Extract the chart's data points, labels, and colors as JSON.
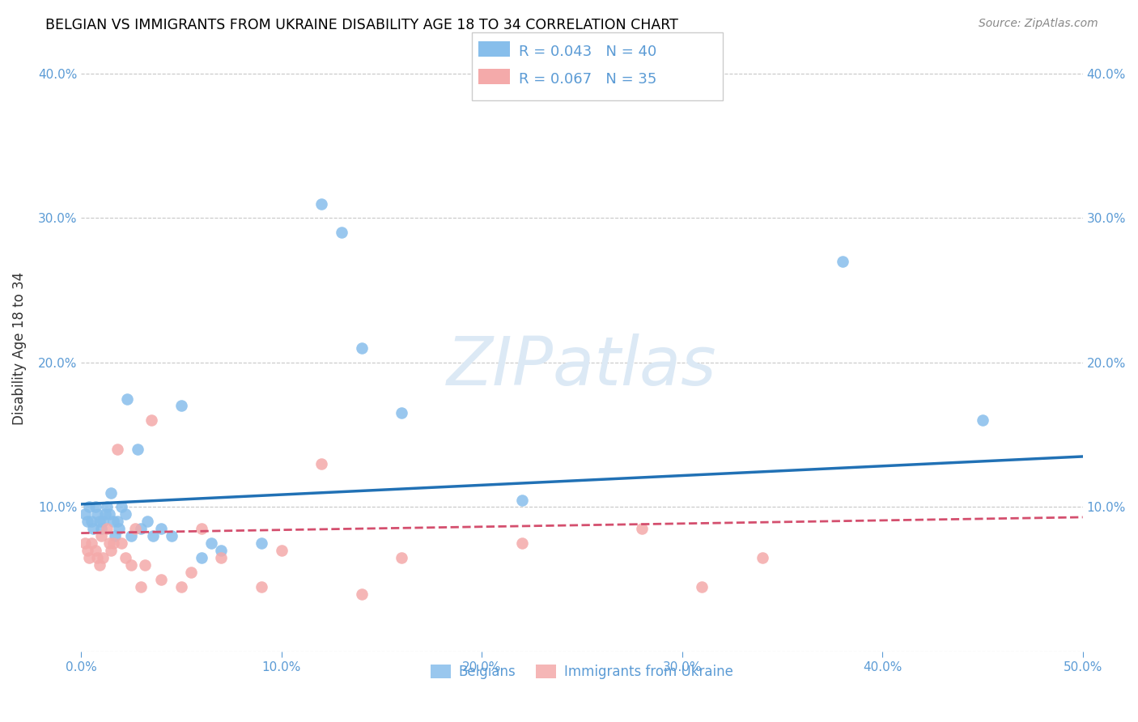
{
  "title": "BELGIAN VS IMMIGRANTS FROM UKRAINE DISABILITY AGE 18 TO 34 CORRELATION CHART",
  "source": "Source: ZipAtlas.com",
  "ylabel": "Disability Age 18 to 34",
  "xlim": [
    0.0,
    0.5
  ],
  "ylim": [
    0.0,
    0.42
  ],
  "xticks": [
    0.0,
    0.1,
    0.2,
    0.3,
    0.4,
    0.5
  ],
  "yticks": [
    0.0,
    0.1,
    0.2,
    0.3,
    0.4
  ],
  "ytick_labels": [
    "",
    "10.0%",
    "20.0%",
    "30.0%",
    "40.0%"
  ],
  "xtick_labels": [
    "0.0%",
    "10.0%",
    "20.0%",
    "30.0%",
    "40.0%",
    "50.0%"
  ],
  "belgians_R": 0.043,
  "belgians_N": 40,
  "ukraine_R": 0.067,
  "ukraine_N": 35,
  "blue_color": "#87BEEB",
  "pink_color": "#F4AAAA",
  "line_blue": "#2171b5",
  "line_pink": "#d44f6e",
  "grid_color": "#c8c8c8",
  "axis_color": "#5b9bd5",
  "watermark_color": "#dce9f5",
  "blue_line_x": [
    0.0,
    0.5
  ],
  "blue_line_y": [
    0.102,
    0.135
  ],
  "pink_line_x": [
    0.0,
    0.5
  ],
  "pink_line_y": [
    0.082,
    0.093
  ],
  "belgians_x": [
    0.002,
    0.003,
    0.004,
    0.005,
    0.006,
    0.007,
    0.008,
    0.009,
    0.01,
    0.011,
    0.012,
    0.013,
    0.014,
    0.015,
    0.016,
    0.017,
    0.018,
    0.019,
    0.02,
    0.022,
    0.023,
    0.025,
    0.028,
    0.03,
    0.033,
    0.036,
    0.04,
    0.045,
    0.05,
    0.06,
    0.065,
    0.07,
    0.09,
    0.12,
    0.13,
    0.14,
    0.16,
    0.22,
    0.38,
    0.45
  ],
  "belgians_y": [
    0.095,
    0.09,
    0.1,
    0.09,
    0.085,
    0.1,
    0.095,
    0.09,
    0.085,
    0.09,
    0.095,
    0.1,
    0.095,
    0.11,
    0.09,
    0.08,
    0.09,
    0.085,
    0.1,
    0.095,
    0.175,
    0.08,
    0.14,
    0.085,
    0.09,
    0.08,
    0.085,
    0.08,
    0.17,
    0.065,
    0.075,
    0.07,
    0.075,
    0.31,
    0.29,
    0.21,
    0.165,
    0.105,
    0.27,
    0.16
  ],
  "ukraine_x": [
    0.002,
    0.003,
    0.004,
    0.005,
    0.007,
    0.008,
    0.009,
    0.01,
    0.011,
    0.013,
    0.014,
    0.015,
    0.016,
    0.018,
    0.02,
    0.022,
    0.025,
    0.027,
    0.03,
    0.032,
    0.035,
    0.04,
    0.05,
    0.055,
    0.06,
    0.07,
    0.09,
    0.1,
    0.12,
    0.14,
    0.16,
    0.22,
    0.28,
    0.31,
    0.34
  ],
  "ukraine_y": [
    0.075,
    0.07,
    0.065,
    0.075,
    0.07,
    0.065,
    0.06,
    0.08,
    0.065,
    0.085,
    0.075,
    0.07,
    0.075,
    0.14,
    0.075,
    0.065,
    0.06,
    0.085,
    0.045,
    0.06,
    0.16,
    0.05,
    0.045,
    0.055,
    0.085,
    0.065,
    0.045,
    0.07,
    0.13,
    0.04,
    0.065,
    0.075,
    0.085,
    0.045,
    0.065
  ]
}
